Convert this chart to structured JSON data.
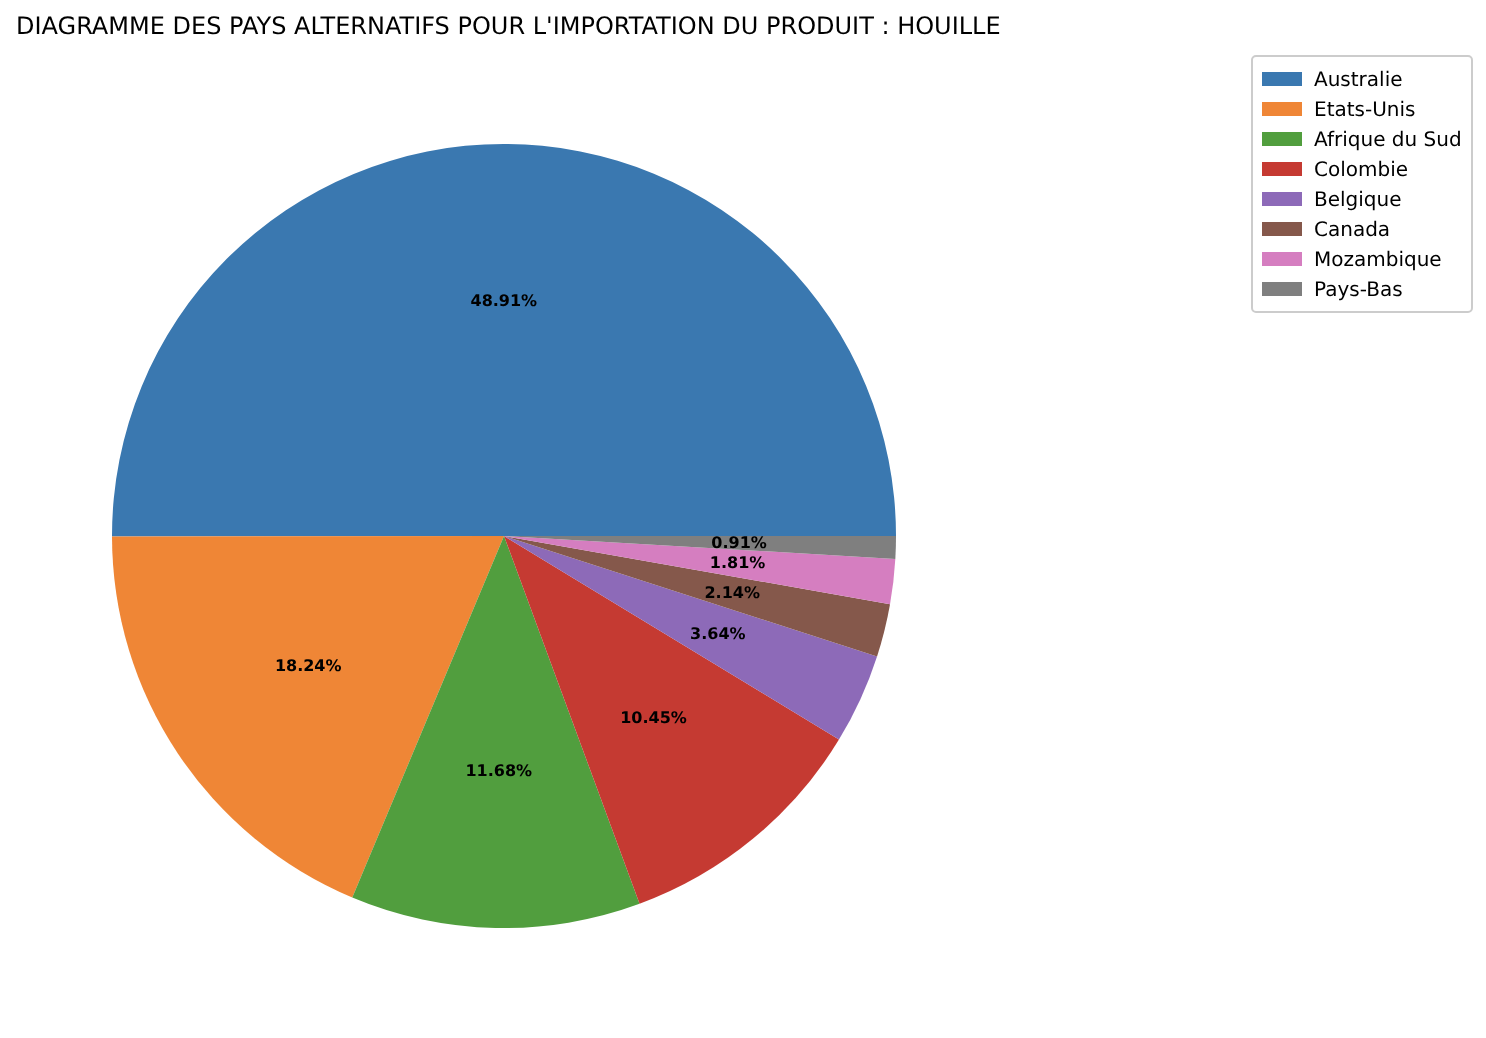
{
  "chart_data": {
    "type": "pie",
    "title": "DIAGRAMME DES PAYS ALTERNATIFS POUR L'IMPORTATION DU PRODUIT : HOUILLE",
    "categories": [
      "Australie",
      "Etats-Unis",
      "Afrique du Sud",
      "Colombie",
      "Belgique",
      "Canada",
      "Mozambique",
      "Pays-Bas"
    ],
    "values": [
      48.91,
      18.24,
      11.68,
      10.45,
      3.64,
      2.14,
      1.81,
      0.91
    ],
    "value_labels": [
      "48.91%",
      "18.24%",
      "11.68%",
      "10.45%",
      "3.64%",
      "2.14%",
      "1.81%",
      "0.91%"
    ],
    "colors": [
      "#3a78b0",
      "#ef8636",
      "#519e3e",
      "#c53a32",
      "#8d6ab8",
      "#85584b",
      "#d57ec0",
      "#7f7f7f"
    ],
    "legend": "top right"
  }
}
